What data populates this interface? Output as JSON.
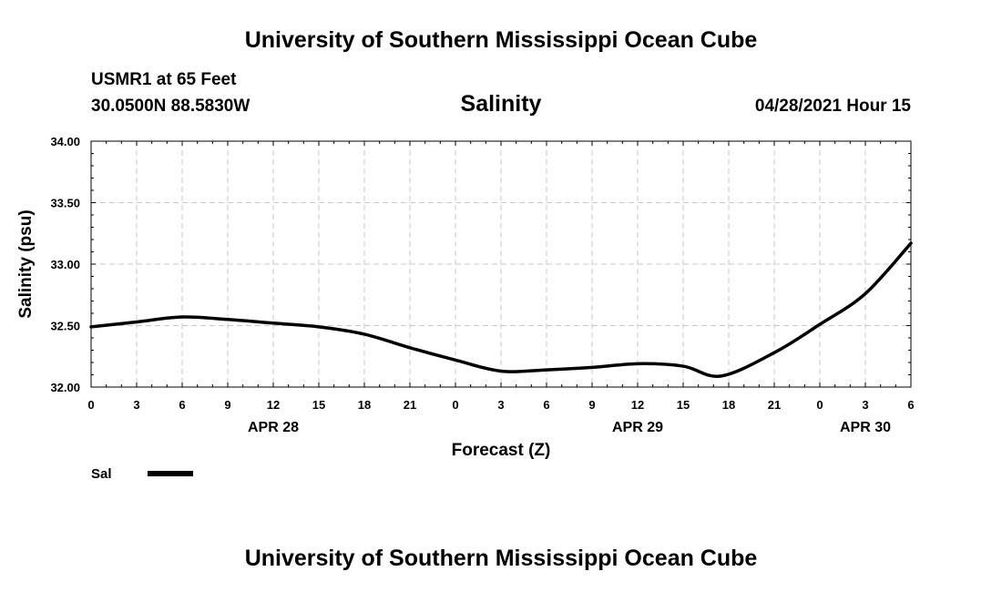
{
  "page": {
    "top_title": "University of Southern Mississippi Ocean Cube",
    "bottom_title": "University of Southern Mississippi Ocean Cube",
    "station": "USMR1 at 65 Feet",
    "coords": "30.0500N  88.5830W",
    "issue_time": "04/28/2021 Hour 15"
  },
  "chart_data": {
    "type": "line",
    "title": "Salinity",
    "xlabel": "Forecast (Z)",
    "ylabel": "Salinity (psu)",
    "ylim": [
      32.0,
      34.0
    ],
    "yticks": [
      32.0,
      32.5,
      33.0,
      33.5,
      34.0
    ],
    "ytick_labels": [
      "32.00",
      "32.50",
      "33.00",
      "33.50",
      "34.00"
    ],
    "xlim": [
      0,
      54
    ],
    "xticks": [
      0,
      3,
      6,
      9,
      12,
      15,
      18,
      21,
      24,
      27,
      30,
      33,
      36,
      39,
      42,
      45,
      48,
      51,
      54
    ],
    "xtick_labels": [
      "0",
      "3",
      "6",
      "9",
      "12",
      "15",
      "18",
      "21",
      "0",
      "3",
      "6",
      "9",
      "12",
      "15",
      "18",
      "21",
      "0",
      "3",
      "6"
    ],
    "day_labels": [
      {
        "text": "APR 28",
        "x": 12
      },
      {
        "text": "APR 29",
        "x": 36
      },
      {
        "text": "APR 30",
        "x": 51
      }
    ],
    "grid": true,
    "legend": {
      "position": "bottom-left"
    },
    "series": [
      {
        "name": "Sal",
        "color": "#000000",
        "x": [
          0,
          3,
          6,
          9,
          12,
          15,
          18,
          21,
          24,
          27,
          30,
          33,
          36,
          39,
          41.5,
          45,
          48,
          51,
          54
        ],
        "values": [
          32.49,
          32.53,
          32.57,
          32.55,
          32.52,
          32.49,
          32.43,
          32.32,
          32.22,
          32.13,
          32.14,
          32.16,
          32.19,
          32.17,
          32.09,
          32.28,
          32.51,
          32.76,
          33.17
        ]
      }
    ]
  }
}
